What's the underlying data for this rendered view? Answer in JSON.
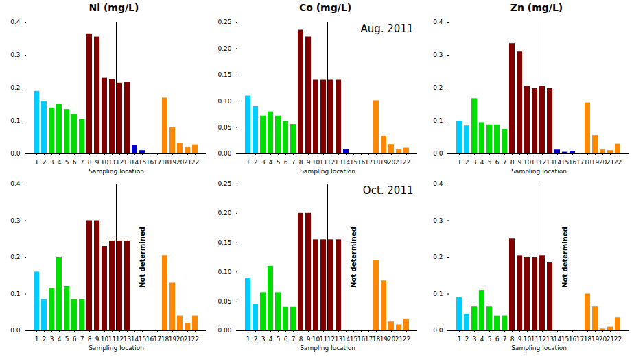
{
  "chart_data": [
    {
      "type": "bar",
      "title": "Ni (mg/L)",
      "xlabel": "Sampling location",
      "categories": [
        "1",
        "2",
        "3",
        "4",
        "5",
        "6",
        "7",
        "8",
        "9",
        "10",
        "11",
        "12",
        "13",
        "14",
        "15",
        "16",
        "17",
        "18",
        "19",
        "20",
        "21",
        "22"
      ],
      "values": [
        0.19,
        0.16,
        0.14,
        0.15,
        0.135,
        0.12,
        0.105,
        0.365,
        0.355,
        0.23,
        0.225,
        0.215,
        0.217,
        0.025,
        0.01,
        0.0,
        0.0,
        0.17,
        0.08,
        0.033,
        0.02,
        0.028
      ],
      "colors": [
        "#00CCFF",
        "#00CCFF",
        "#00DD00",
        "#00DD00",
        "#00DD00",
        "#00DD00",
        "#00DD00",
        "#800000",
        "#800000",
        "#800000",
        "#800000",
        "#800000",
        "#800000",
        "#0000CC",
        "#0000CC",
        "#0000CC",
        "#0000CC",
        "#FF8800",
        "#FF8800",
        "#FF8800",
        "#FF8800",
        "#FF8800"
      ],
      "ylim": [
        0,
        0.4
      ],
      "yticks": [
        {
          "value": 0.0,
          "label": "0.0"
        },
        {
          "value": 0.1,
          "label": "0.1"
        },
        {
          "value": 0.2,
          "label": "0.2"
        },
        {
          "value": 0.3,
          "label": "0.3"
        },
        {
          "value": 0.4,
          "label": "0.4"
        }
      ],
      "grid": false
    },
    {
      "type": "bar",
      "title": "Co (mg/L)",
      "xlabel": "Sampling location",
      "categories": [
        "1",
        "2",
        "3",
        "4",
        "5",
        "6",
        "7",
        "8",
        "9",
        "10",
        "11",
        "12",
        "13",
        "14",
        "15",
        "16",
        "17",
        "18",
        "19",
        "20",
        "21",
        "22"
      ],
      "values": [
        0.11,
        0.09,
        0.072,
        0.08,
        0.072,
        0.062,
        0.056,
        0.235,
        0.222,
        0.14,
        0.14,
        0.14,
        0.14,
        0.009,
        0.0,
        0.0,
        0.0,
        0.101,
        0.034,
        0.018,
        0.008,
        0.011
      ],
      "colors": [
        "#00CCFF",
        "#00CCFF",
        "#00DD00",
        "#00DD00",
        "#00DD00",
        "#00DD00",
        "#00DD00",
        "#800000",
        "#800000",
        "#800000",
        "#800000",
        "#800000",
        "#800000",
        "#0000CC",
        "#0000CC",
        "#0000CC",
        "#0000CC",
        "#FF8800",
        "#FF8800",
        "#FF8800",
        "#FF8800",
        "#FF8800"
      ],
      "ylim": [
        0,
        0.25
      ],
      "yticks": [
        {
          "value": 0.0,
          "label": "0.00"
        },
        {
          "value": 0.05,
          "label": "0.05"
        },
        {
          "value": 0.1,
          "label": "0.10"
        },
        {
          "value": 0.15,
          "label": "0.15"
        },
        {
          "value": 0.2,
          "label": "0.20"
        },
        {
          "value": 0.25,
          "label": "0.25"
        }
      ],
      "annotations": [
        {
          "text": "Aug. 2011"
        }
      ],
      "grid": false
    },
    {
      "type": "bar",
      "title": "Zn (mg/L)",
      "xlabel": "Sampling location",
      "categories": [
        "1",
        "2",
        "3",
        "4",
        "5",
        "6",
        "7",
        "8",
        "9",
        "10",
        "11",
        "12",
        "13",
        "14",
        "15",
        "16",
        "17",
        "18",
        "19",
        "20",
        "21",
        "22"
      ],
      "values": [
        0.1,
        0.085,
        0.168,
        0.095,
        0.088,
        0.088,
        0.075,
        0.335,
        0.31,
        0.205,
        0.198,
        0.205,
        0.198,
        0.012,
        0.005,
        0.008,
        0.0,
        0.155,
        0.056,
        0.012,
        0.01,
        0.03
      ],
      "colors": [
        "#00CCFF",
        "#00CCFF",
        "#00DD00",
        "#00DD00",
        "#00DD00",
        "#00DD00",
        "#00DD00",
        "#800000",
        "#800000",
        "#800000",
        "#800000",
        "#800000",
        "#800000",
        "#0000CC",
        "#0000CC",
        "#0000CC",
        "#0000CC",
        "#FF8800",
        "#FF8800",
        "#FF8800",
        "#FF8800",
        "#FF8800"
      ],
      "ylim": [
        0,
        0.4
      ],
      "yticks": [
        {
          "value": 0.0,
          "label": "0.0"
        },
        {
          "value": 0.1,
          "label": "0.1"
        },
        {
          "value": 0.2,
          "label": "0.2"
        },
        {
          "value": 0.3,
          "label": "0.3"
        },
        {
          "value": 0.4,
          "label": "0.4"
        }
      ],
      "grid": false
    },
    {
      "type": "bar",
      "xlabel": "Sampling location",
      "categories": [
        "1",
        "2",
        "3",
        "4",
        "5",
        "6",
        "7",
        "8",
        "9",
        "10",
        "11",
        "12",
        "13",
        "14",
        "15",
        "16",
        "17",
        "18",
        "19",
        "20",
        "21",
        "22"
      ],
      "values": [
        0.16,
        0.085,
        0.115,
        0.2,
        0.12,
        0.085,
        0.085,
        0.3,
        0.3,
        0.23,
        0.245,
        0.245,
        0.245,
        0.0,
        0.0,
        0.0,
        0.0,
        0.205,
        0.13,
        0.04,
        0.02,
        0.04
      ],
      "colors": [
        "#00CCFF",
        "#00CCFF",
        "#00DD00",
        "#00DD00",
        "#00DD00",
        "#00DD00",
        "#00DD00",
        "#800000",
        "#800000",
        "#800000",
        "#800000",
        "#800000",
        "#800000",
        "#0000CC",
        "#0000CC",
        "#0000CC",
        "#0000CC",
        "#FF8800",
        "#FF8800",
        "#FF8800",
        "#FF8800",
        "#FF8800"
      ],
      "ylim": [
        0,
        0.4
      ],
      "yticks": [
        {
          "value": 0.0,
          "label": "0.0"
        },
        {
          "value": 0.1,
          "label": "0.1"
        },
        {
          "value": 0.2,
          "label": "0.2"
        },
        {
          "value": 0.3,
          "label": "0.3"
        },
        {
          "value": 0.4,
          "label": "0.4"
        }
      ],
      "annotations": [
        {
          "text": "Not determined",
          "x": "15"
        }
      ],
      "grid": false
    },
    {
      "type": "bar",
      "xlabel": "Sampling location",
      "categories": [
        "1",
        "2",
        "3",
        "4",
        "5",
        "6",
        "7",
        "8",
        "9",
        "10",
        "11",
        "12",
        "13",
        "14",
        "15",
        "16",
        "17",
        "18",
        "19",
        "20",
        "21",
        "22"
      ],
      "values": [
        0.09,
        0.045,
        0.065,
        0.11,
        0.065,
        0.04,
        0.04,
        0.2,
        0.2,
        0.155,
        0.155,
        0.155,
        0.155,
        0.0,
        0.0,
        0.0,
        0.0,
        0.12,
        0.085,
        0.015,
        0.01,
        0.02
      ],
      "colors": [
        "#00CCFF",
        "#00CCFF",
        "#00DD00",
        "#00DD00",
        "#00DD00",
        "#00DD00",
        "#00DD00",
        "#800000",
        "#800000",
        "#800000",
        "#800000",
        "#800000",
        "#800000",
        "#0000CC",
        "#0000CC",
        "#0000CC",
        "#0000CC",
        "#FF8800",
        "#FF8800",
        "#FF8800",
        "#FF8800",
        "#FF8800"
      ],
      "ylim": [
        0,
        0.25
      ],
      "yticks": [
        {
          "value": 0.0,
          "label": "0.00"
        },
        {
          "value": 0.05,
          "label": "0.05"
        },
        {
          "value": 0.1,
          "label": "0.10"
        },
        {
          "value": 0.15,
          "label": "0.15"
        },
        {
          "value": 0.2,
          "label": "0.20"
        },
        {
          "value": 0.25,
          "label": "0.25"
        }
      ],
      "annotations": [
        {
          "text": "Oct. 2011"
        },
        {
          "text": "Not determined",
          "x": "15"
        }
      ],
      "grid": false
    },
    {
      "type": "bar",
      "xlabel": "Sampling location",
      "categories": [
        "1",
        "2",
        "3",
        "4",
        "5",
        "6",
        "7",
        "8",
        "9",
        "10",
        "11",
        "12",
        "13",
        "14",
        "15",
        "16",
        "17",
        "18",
        "19",
        "20",
        "21",
        "22"
      ],
      "values": [
        0.09,
        0.045,
        0.065,
        0.11,
        0.065,
        0.04,
        0.04,
        0.25,
        0.205,
        0.2,
        0.2,
        0.205,
        0.185,
        0.0,
        0.0,
        0.0,
        0.0,
        0.1,
        0.065,
        0.005,
        0.01,
        0.035
      ],
      "colors": [
        "#00CCFF",
        "#00CCFF",
        "#00DD00",
        "#00DD00",
        "#00DD00",
        "#00DD00",
        "#00DD00",
        "#800000",
        "#800000",
        "#800000",
        "#800000",
        "#800000",
        "#800000",
        "#0000CC",
        "#0000CC",
        "#0000CC",
        "#0000CC",
        "#FF8800",
        "#FF8800",
        "#FF8800",
        "#FF8800",
        "#FF8800"
      ],
      "ylim": [
        0,
        0.4
      ],
      "yticks": [
        {
          "value": 0.0,
          "label": "0.0"
        },
        {
          "value": 0.1,
          "label": "0.1"
        },
        {
          "value": 0.2,
          "label": "0.2"
        },
        {
          "value": 0.3,
          "label": "0.3"
        },
        {
          "value": 0.4,
          "label": "0.4"
        }
      ],
      "annotations": [
        {
          "text": "Not determined",
          "x": "15"
        }
      ],
      "grid": false
    }
  ]
}
